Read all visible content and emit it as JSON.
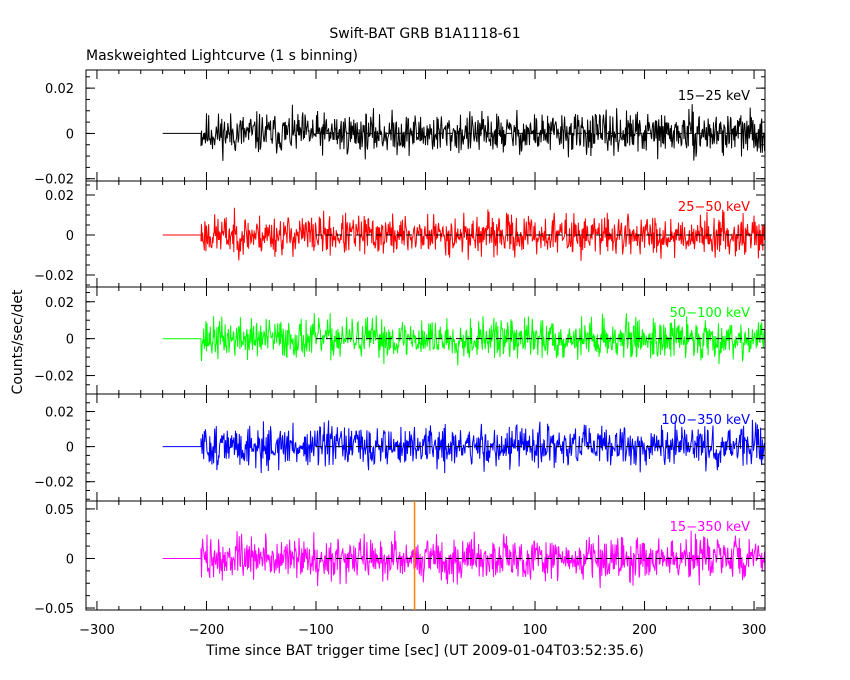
{
  "title": "Swift-BAT GRB B1A1118-61",
  "subtitle": "Maskweighted Lightcurve (1 s binning)",
  "ylabel": "Counts/sec/det",
  "xlabel": "Time since BAT trigger time [sec] (UT 2009-01-04T03:52:35.6)",
  "chart_data": {
    "type": "line",
    "xlim": [
      -310,
      310
    ],
    "x_ticks": [
      -300,
      -200,
      -100,
      0,
      100,
      200,
      300
    ],
    "x_tick_labels": [
      "−300",
      "−200",
      "−100",
      "0",
      "100",
      "200",
      "300"
    ],
    "trigger_marker_x": -10,
    "data_start_x": -205,
    "flat_start_x": -240,
    "data_end_x": 310,
    "panels": [
      {
        "name": "15−25 keV",
        "color": "#000000",
        "ylim": [
          -0.021,
          0.028
        ],
        "y_ticks": [
          -0.02,
          0,
          0.02
        ],
        "y_tick_labels": [
          "−0.02",
          "0",
          "0.02"
        ],
        "noise_amplitude": 0.0095,
        "seed": 11
      },
      {
        "name": "25−50 keV",
        "color": "#ff0000",
        "ylim": [
          -0.026,
          0.027
        ],
        "y_ticks": [
          -0.02,
          0,
          0.02
        ],
        "y_tick_labels": [
          "−0.02",
          "0",
          "0.02"
        ],
        "noise_amplitude": 0.0105,
        "seed": 23
      },
      {
        "name": "50−100 keV",
        "color": "#00ff00",
        "ylim": [
          -0.03,
          0.028
        ],
        "y_ticks": [
          -0.02,
          0,
          0.02
        ],
        "y_tick_labels": [
          "−0.02",
          "0",
          "0.02"
        ],
        "noise_amplitude": 0.0115,
        "seed": 37
      },
      {
        "name": "100−350 keV",
        "color": "#0000ff",
        "ylim": [
          -0.031,
          0.03
        ],
        "y_ticks": [
          -0.02,
          0,
          0.02
        ],
        "y_tick_labels": [
          "−0.02",
          "0",
          "0.02"
        ],
        "noise_amplitude": 0.0125,
        "seed": 51
      },
      {
        "name": "15−350 keV",
        "color": "#ff00ff",
        "ylim": [
          -0.052,
          0.058
        ],
        "y_ticks": [
          -0.05,
          0,
          0.05
        ],
        "y_tick_labels": [
          "−0.05",
          "0",
          "0.05"
        ],
        "noise_amplitude": 0.023,
        "seed": 73
      }
    ]
  }
}
